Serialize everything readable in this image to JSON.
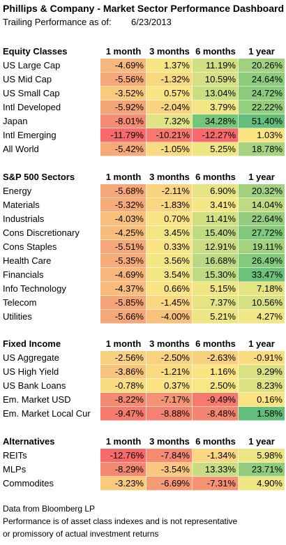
{
  "title": "Phillips & Company - Market Sector Performance Dashboard",
  "as_of_label": "Trailing Performance as of:",
  "as_of_date": "6/23/2013",
  "columns": [
    "1 month",
    "3 months",
    "6 months",
    "1 year"
  ],
  "sections": [
    {
      "name": "Equity Classes",
      "rows": [
        {
          "label": "US Large Cap",
          "values": [
            "-4.69%",
            "1.37%",
            "11.19%",
            "20.26%"
          ],
          "colors": [
            "#f7b77c",
            "#f4e783",
            "#d2df82",
            "#9fd17e"
          ]
        },
        {
          "label": "US Mid Cap",
          "values": [
            "-5.56%",
            "-1.32%",
            "10.59%",
            "24.64%"
          ],
          "colors": [
            "#f6a878",
            "#fad880",
            "#d6e082",
            "#8ccc7c"
          ]
        },
        {
          "label": "US Small Cap",
          "values": [
            "-3.52%",
            "0.57%",
            "13.04%",
            "24.72%"
          ],
          "colors": [
            "#f9c97e",
            "#fbe583",
            "#c9dd82",
            "#8bcc7c"
          ]
        },
        {
          "label": "Intl Developed",
          "values": [
            "-5.92%",
            "-2.04%",
            "3.79%",
            "22.22%"
          ],
          "colors": [
            "#f5a476",
            "#fad57f",
            "#f2e784",
            "#95ce7d"
          ]
        },
        {
          "label": "Japan",
          "values": [
            "-8.01%",
            "7.32%",
            "34.28%",
            "51.40%"
          ],
          "colors": [
            "#f48b72",
            "#e2e383",
            "#76c67a",
            "#63be7b"
          ]
        },
        {
          "label": "Intl Emerging",
          "values": [
            "-11.79%",
            "-10.21%",
            "-12.27%",
            "1.03%"
          ],
          "colors": [
            "#f8696b",
            "#f7796e",
            "#f8696b",
            "#fbe583"
          ]
        },
        {
          "label": "All World",
          "values": [
            "-5.42%",
            "-1.05%",
            "5.25%",
            "18.78%"
          ],
          "colors": [
            "#f6aa78",
            "#fbdb81",
            "#eee683",
            "#a6d37f"
          ]
        }
      ]
    },
    {
      "name": "S&P 500 Sectors",
      "rows": [
        {
          "label": "Energy",
          "values": [
            "-5.68%",
            "-2.11%",
            "6.90%",
            "20.32%"
          ],
          "colors": [
            "#f5a777",
            "#fad47f",
            "#e6e483",
            "#9fd17e"
          ]
        },
        {
          "label": "Materials",
          "values": [
            "-5.32%",
            "-1.83%",
            "3.41%",
            "14.04%"
          ],
          "colors": [
            "#f6ab78",
            "#fad680",
            "#f4e784",
            "#c0da81"
          ]
        },
        {
          "label": "Industrials",
          "values": [
            "-4.03%",
            "0.70%",
            "11.41%",
            "22.64%"
          ],
          "colors": [
            "#f8c07c",
            "#fbe483",
            "#d1df82",
            "#93cd7d"
          ]
        },
        {
          "label": "Cons Discretionary",
          "values": [
            "-4.25%",
            "3.45%",
            "15.40%",
            "27.72%"
          ],
          "colors": [
            "#f8bd7b",
            "#f3e784",
            "#c0da81",
            "#80c97c"
          ]
        },
        {
          "label": "Cons Staples",
          "values": [
            "-5.51%",
            "0.33%",
            "12.91%",
            "19.11%"
          ],
          "colors": [
            "#f6a978",
            "#fbe483",
            "#cadd82",
            "#a4d27f"
          ]
        },
        {
          "label": "Health Care",
          "values": [
            "-5.35%",
            "3.56%",
            "16.68%",
            "26.49%"
          ],
          "colors": [
            "#f6ab78",
            "#f3e784",
            "#bad881",
            "#84ca7c"
          ]
        },
        {
          "label": "Financials",
          "values": [
            "-4.69%",
            "3.54%",
            "15.30%",
            "33.47%"
          ],
          "colors": [
            "#f7b77c",
            "#f3e784",
            "#c0da81",
            "#6cc27b"
          ]
        },
        {
          "label": "Info Technology",
          "values": [
            "-4.37%",
            "0.66%",
            "5.15%",
            "7.18%"
          ],
          "colors": [
            "#f8bb7b",
            "#fbe483",
            "#efe683",
            "#e5e483"
          ]
        },
        {
          "label": "Telecom",
          "values": [
            "-5.85%",
            "-1.45%",
            "7.37%",
            "10.56%"
          ],
          "colors": [
            "#f5a576",
            "#fad780",
            "#e5e483",
            "#d5e082"
          ]
        },
        {
          "label": "Utilities",
          "values": [
            "-5.66%",
            "-4.00%",
            "5.21%",
            "4.27%"
          ],
          "colors": [
            "#f5a777",
            "#f8c17c",
            "#eee683",
            "#f1e784"
          ]
        }
      ]
    },
    {
      "name": "Fixed Income",
      "rows": [
        {
          "label": "US Aggregate",
          "values": [
            "-2.56%",
            "-2.50%",
            "-2.63%",
            "-0.91%"
          ],
          "colors": [
            "#f9d07f",
            "#f9d17f",
            "#f9d07f",
            "#fbdd81"
          ]
        },
        {
          "label": "US High Yield",
          "values": [
            "-3.86%",
            "-1.21%",
            "1.16%",
            "9.29%"
          ],
          "colors": [
            "#f8c37c",
            "#fbd980",
            "#fbe583",
            "#dae182"
          ]
        },
        {
          "label": "US Bank Loans",
          "values": [
            "-0.78%",
            "0.37%",
            "2.50%",
            "8.23%"
          ],
          "colors": [
            "#fbdd81",
            "#fbe483",
            "#f7e884",
            "#dfe283"
          ]
        },
        {
          "label": "Em. Market USD",
          "values": [
            "-8.22%",
            "-7.17%",
            "-9.49%",
            "0.16%"
          ],
          "colors": [
            "#f48971",
            "#f59474",
            "#f67b6e",
            "#fbe382"
          ]
        },
        {
          "label": "Em. Market Local Cur",
          "values": [
            "-9.47%",
            "-8.88%",
            "-8.48%",
            "1.58%"
          ],
          "colors": [
            "#f67b6e",
            "#f58270",
            "#f48671",
            "#63be7b"
          ]
        }
      ]
    },
    {
      "name": "Alternatives",
      "rows": [
        {
          "label": "REITs",
          "values": [
            "-12.76%",
            "-7.84%",
            "-1.34%",
            "5.98%"
          ],
          "colors": [
            "#f8696b",
            "#f58c72",
            "#fad780",
            "#ebe583"
          ]
        },
        {
          "label": "MLPs",
          "values": [
            "-8.29%",
            "-3.54%",
            "13.33%",
            "23.71%"
          ],
          "colors": [
            "#f48871",
            "#f9c87e",
            "#c8dc82",
            "#8fcd7d"
          ]
        },
        {
          "label": "Commodites",
          "values": [
            "-3.23%",
            "-6.69%",
            "-7.31%",
            "4.90%"
          ],
          "colors": [
            "#f9c97e",
            "#f59a75",
            "#f59373",
            "#efe683"
          ]
        }
      ]
    }
  ],
  "footer": [
    "Data from Bloomberg LP",
    "Performance is of asset class indexes and is not representative",
    "or promissory of actual investment returns"
  ]
}
